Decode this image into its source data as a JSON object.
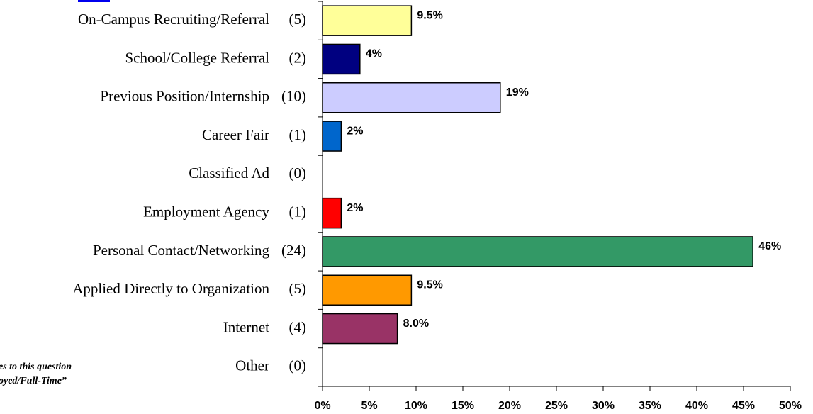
{
  "chart_data": {
    "type": "bar",
    "orientation": "horizontal",
    "categories": [
      "On-Campus Recruiting/Referral",
      "School/College Referral",
      "Previous Position/Internship",
      "Career Fair",
      "Classified Ad",
      "Employment Agency",
      "Personal Contact/Networking",
      "Applied Directly to Organization",
      "Internet",
      "Other"
    ],
    "count_labels": [
      "(5)",
      "(2)",
      "(10)",
      "(1)",
      "(0)",
      "(1)",
      "(24)",
      "(5)",
      "(4)",
      "(0)"
    ],
    "values": [
      9.5,
      4,
      19,
      2,
      0,
      2,
      46,
      9.5,
      8,
      0
    ],
    "value_labels": [
      "9.5%",
      "4%",
      "19%",
      "2%",
      null,
      "2%",
      "46%",
      "9.5%",
      "8.0%",
      null
    ],
    "colors": [
      "#ffff99",
      "#000080",
      "#ccccff",
      "#0066cc",
      "#cccccc",
      "#ff0000",
      "#339966",
      "#ff9900",
      "#993366",
      "#cccccc"
    ],
    "xlim": [
      0,
      50
    ],
    "xticks": [
      {
        "value": 0,
        "label": "0%"
      },
      {
        "value": 5,
        "label": "5%"
      },
      {
        "value": 10,
        "label": "10%"
      },
      {
        "value": 15,
        "label": "15%"
      },
      {
        "value": 20,
        "label": "20%"
      },
      {
        "value": 25,
        "label": "25%"
      },
      {
        "value": 30,
        "label": "30%"
      },
      {
        "value": 35,
        "label": "35%"
      },
      {
        "value": 40,
        "label": "40%"
      },
      {
        "value": 45,
        "label": "45%"
      },
      {
        "value": 50,
        "label": "50%"
      }
    ],
    "annotations": [
      "es to this question",
      "oyed/Full-Time”"
    ]
  }
}
